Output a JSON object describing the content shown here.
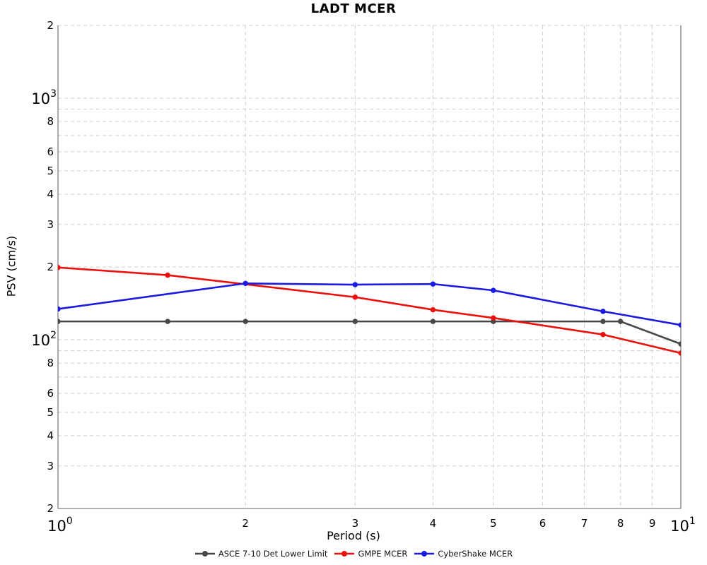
{
  "title": "LADT MCER",
  "chart_data": {
    "type": "line",
    "title": "LADT MCER",
    "xlabel": "Period (s)",
    "ylabel": "PSV (cm/s)",
    "x_scale": "log",
    "y_scale": "log",
    "xlim": [
      1,
      10
    ],
    "ylim": [
      20,
      2000
    ],
    "grid": "dashed minor gridlines both axes",
    "grid_color": "#cfcfcf",
    "legend_position": "bottom-center",
    "x_ticks": [
      {
        "v": 1,
        "label": "10",
        "exp": "0"
      },
      {
        "v": 2,
        "label": "2"
      },
      {
        "v": 3,
        "label": "3"
      },
      {
        "v": 4,
        "label": "4"
      },
      {
        "v": 5,
        "label": "5"
      },
      {
        "v": 6,
        "label": "6"
      },
      {
        "v": 7,
        "label": "7"
      },
      {
        "v": 8,
        "label": "8"
      },
      {
        "v": 9,
        "label": "9"
      },
      {
        "v": 10,
        "label": "10",
        "exp": "1"
      }
    ],
    "y_ticks": [
      {
        "v": 2000,
        "label": "2"
      },
      {
        "v": 1000,
        "label": "10",
        "exp": "3"
      },
      {
        "v": 800,
        "label": "8"
      },
      {
        "v": 600,
        "label": "6"
      },
      {
        "v": 500,
        "label": "5"
      },
      {
        "v": 400,
        "label": "4"
      },
      {
        "v": 300,
        "label": "3"
      },
      {
        "v": 200,
        "label": "2"
      },
      {
        "v": 100,
        "label": "10",
        "exp": "2"
      },
      {
        "v": 80,
        "label": "8"
      },
      {
        "v": 60,
        "label": "6"
      },
      {
        "v": 50,
        "label": "5"
      },
      {
        "v": 40,
        "label": "4"
      },
      {
        "v": 30,
        "label": "3"
      },
      {
        "v": 20,
        "label": "2"
      }
    ],
    "series": [
      {
        "id": "asce-7-10-det-lower-limit",
        "name": "ASCE 7-10 Det Lower Limit",
        "color": "#474747",
        "x": [
          1,
          1.5,
          2,
          3,
          4,
          5,
          7.5,
          8,
          10
        ],
        "y": [
          119,
          119,
          119,
          119,
          119,
          119,
          119,
          119,
          96
        ]
      },
      {
        "id": "gmpe-mcer",
        "name": "GMPE MCER",
        "color": "#ec100c",
        "x": [
          1,
          1.5,
          3,
          4,
          5,
          7.5,
          10
        ],
        "y": [
          199,
          185,
          150,
          133,
          123,
          105,
          88
        ]
      },
      {
        "id": "cybershake-mcer",
        "name": "CyberShake MCER",
        "color": "#1a1ae0",
        "x": [
          1,
          2,
          3,
          4,
          5,
          7.5,
          10
        ],
        "y": [
          134,
          171,
          169,
          170,
          160,
          131,
          115
        ]
      }
    ]
  }
}
